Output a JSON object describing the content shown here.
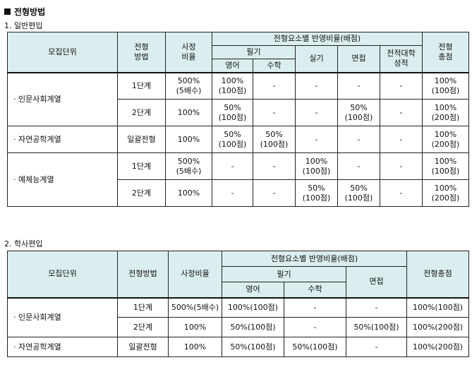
{
  "title": "전형방법",
  "section1": {
    "label": "1. 일반편입",
    "headers": {
      "unit": "모집단위",
      "method": "전형\n방법",
      "ratio": "사정\n비율",
      "elements": "전형요소별 반영비율(배점)",
      "written": "필기",
      "english": "영어",
      "math": "수학",
      "practical": "실기",
      "interview": "면접",
      "prev_univ": "전적대학\n성적",
      "total": "전형\n총점"
    },
    "groups": [
      {
        "unit": "· 인문사회계열",
        "rows": [
          {
            "method": "1단계",
            "ratio": "500%\n(5배수)",
            "english": "100%\n(100점)",
            "math": "-",
            "practical": "-",
            "interview": "-",
            "prev_univ": "-",
            "total": "100%\n(100점)"
          },
          {
            "method": "2단계",
            "ratio": "100%",
            "english": "50%\n(100점)",
            "math": "-",
            "practical": "-",
            "interview": "50%\n(100점)",
            "prev_univ": "-",
            "total": "100%\n(200점)"
          }
        ]
      },
      {
        "unit": "· 자연공학계열",
        "rows": [
          {
            "method": "일괄전형",
            "ratio": "100%",
            "english": "50%\n(100점)",
            "math": "50%\n(100점)",
            "practical": "-",
            "interview": "-",
            "prev_univ": "-",
            "total": "100%\n(200점)"
          }
        ]
      },
      {
        "unit": "· 예체능계열",
        "rows": [
          {
            "method": "1단계",
            "ratio": "500%\n(5배수)",
            "english": "-",
            "math": "-",
            "practical": "100%\n(100점)",
            "interview": "-",
            "prev_univ": "-",
            "total": "100%\n(100점)"
          },
          {
            "method": "2단계",
            "ratio": "100%",
            "english": "-",
            "math": "-",
            "practical": "50%\n(100점)",
            "interview": "50%\n(100점)",
            "prev_univ": "-",
            "total": "100%\n(200점)"
          }
        ]
      }
    ]
  },
  "section2": {
    "label": "2. 학사편입",
    "headers": {
      "unit": "모집단위",
      "method": "전형방법",
      "ratio": "사정비율",
      "elements": "전형요소별 반영비율(배점)",
      "written": "필기",
      "english": "영어",
      "math": "수학",
      "interview": "면접",
      "total": "전형총점"
    },
    "groups": [
      {
        "unit": "· 인문사회계열",
        "rows": [
          {
            "method": "1단계",
            "ratio": "500%(5배수)",
            "english": "100%(100점)",
            "math": "-",
            "interview": "-",
            "total": "100%(100점)"
          },
          {
            "method": "2단계",
            "ratio": "100%",
            "english": "50%(100점)",
            "math": "-",
            "interview": "50%(100점)",
            "total": "100%(200점)"
          }
        ]
      },
      {
        "unit": "· 자연공학계열",
        "rows": [
          {
            "method": "일괄전형",
            "ratio": "100%",
            "english": "50%(100점)",
            "math": "50%(100점)",
            "interview": "-",
            "total": "100%(200점)"
          }
        ]
      }
    ]
  },
  "colors": {
    "header_bg": "#dbeeef",
    "border": "#222222"
  }
}
